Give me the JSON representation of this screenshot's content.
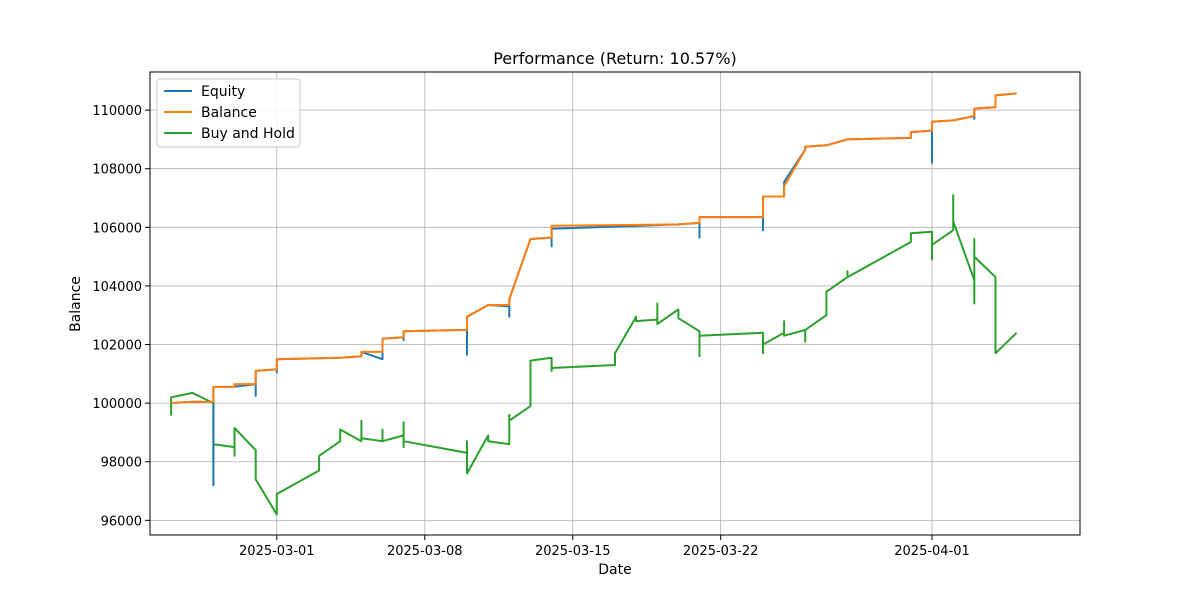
{
  "chart_data": {
    "type": "line",
    "title": "Performance (Return: 10.57%)",
    "xlabel": "Date",
    "ylabel": "Balance",
    "xlim": [
      "2025-02-23",
      "2025-04-08"
    ],
    "ylim": [
      95500,
      111300
    ],
    "x_ticks": [
      "2025-03-01",
      "2025-03-08",
      "2025-03-15",
      "2025-03-22",
      "2025-04-01"
    ],
    "y_ticks": [
      96000,
      98000,
      100000,
      102000,
      104000,
      106000,
      108000,
      110000
    ],
    "grid": true,
    "legend_position": "top-left",
    "series": [
      {
        "name": "Equity",
        "color": "#1f77b4",
        "points": [
          [
            "2025-02-24",
            100000
          ],
          [
            "2025-02-25",
            100050
          ],
          [
            "2025-02-26",
            100040
          ],
          [
            "2025-02-26",
            97200
          ],
          [
            "2025-02-26",
            100550
          ],
          [
            "2025-02-27",
            100560
          ],
          [
            "2025-02-28",
            100650
          ],
          [
            "2025-02-28",
            100250
          ],
          [
            "2025-02-28",
            101100
          ],
          [
            "2025-03-01",
            101150
          ],
          [
            "2025-03-01",
            101050
          ],
          [
            "2025-03-01",
            101500
          ],
          [
            "2025-03-04",
            101550
          ],
          [
            "2025-03-05",
            101600
          ],
          [
            "2025-03-05",
            101750
          ],
          [
            "2025-03-06",
            101500
          ],
          [
            "2025-03-06",
            102200
          ],
          [
            "2025-03-07",
            102250
          ],
          [
            "2025-03-07",
            102150
          ],
          [
            "2025-03-07",
            102450
          ],
          [
            "2025-03-10",
            102500
          ],
          [
            "2025-03-10",
            101650
          ],
          [
            "2025-03-10",
            102950
          ],
          [
            "2025-03-11",
            103350
          ],
          [
            "2025-03-12",
            103300
          ],
          [
            "2025-03-12",
            102950
          ],
          [
            "2025-03-12",
            103550
          ],
          [
            "2025-03-13",
            105600
          ],
          [
            "2025-03-14",
            105650
          ],
          [
            "2025-03-14",
            105350
          ],
          [
            "2025-03-14",
            105950
          ],
          [
            "2025-03-20",
            106100
          ],
          [
            "2025-03-21",
            106150
          ],
          [
            "2025-03-21",
            105650
          ],
          [
            "2025-03-21",
            106350
          ],
          [
            "2025-03-24",
            106350
          ],
          [
            "2025-03-24",
            105900
          ],
          [
            "2025-03-24",
            107050
          ],
          [
            "2025-03-25",
            107050
          ],
          [
            "2025-03-25",
            107550
          ],
          [
            "2025-03-26",
            108650
          ],
          [
            "2025-03-26",
            108750
          ],
          [
            "2025-03-27",
            108800
          ],
          [
            "2025-03-28",
            109000
          ],
          [
            "2025-03-31",
            109050
          ],
          [
            "2025-03-31",
            109250
          ],
          [
            "2025-04-01",
            109300
          ],
          [
            "2025-04-01",
            108200
          ],
          [
            "2025-04-01",
            109600
          ],
          [
            "2025-04-02",
            109650
          ],
          [
            "2025-04-03",
            109800
          ],
          [
            "2025-04-03",
            109700
          ],
          [
            "2025-04-03",
            110050
          ],
          [
            "2025-04-04",
            110100
          ],
          [
            "2025-04-04",
            110500
          ],
          [
            "2025-04-05",
            110570
          ]
        ]
      },
      {
        "name": "Balance",
        "color": "#ff7f0e",
        "points": [
          [
            "2025-02-24",
            100000
          ],
          [
            "2025-02-25",
            100050
          ],
          [
            "2025-02-26",
            100040
          ],
          [
            "2025-02-26",
            100550
          ],
          [
            "2025-02-27",
            100560
          ],
          [
            "2025-02-27",
            100650
          ],
          [
            "2025-02-28",
            100650
          ],
          [
            "2025-02-28",
            101100
          ],
          [
            "2025-03-01",
            101150
          ],
          [
            "2025-03-01",
            101500
          ],
          [
            "2025-03-04",
            101550
          ],
          [
            "2025-03-05",
            101600
          ],
          [
            "2025-03-05",
            101750
          ],
          [
            "2025-03-06",
            101750
          ],
          [
            "2025-03-06",
            102200
          ],
          [
            "2025-03-07",
            102250
          ],
          [
            "2025-03-07",
            102450
          ],
          [
            "2025-03-10",
            102500
          ],
          [
            "2025-03-10",
            102950
          ],
          [
            "2025-03-11",
            103350
          ],
          [
            "2025-03-12",
            103350
          ],
          [
            "2025-03-12",
            103550
          ],
          [
            "2025-03-13",
            105600
          ],
          [
            "2025-03-14",
            105650
          ],
          [
            "2025-03-14",
            105950
          ],
          [
            "2025-03-14",
            106050
          ],
          [
            "2025-03-20",
            106100
          ],
          [
            "2025-03-21",
            106150
          ],
          [
            "2025-03-21",
            106350
          ],
          [
            "2025-03-24",
            106350
          ],
          [
            "2025-03-24",
            107050
          ],
          [
            "2025-03-25",
            107050
          ],
          [
            "2025-03-25",
            107400
          ],
          [
            "2025-03-26",
            108650
          ],
          [
            "2025-03-26",
            108750
          ],
          [
            "2025-03-27",
            108800
          ],
          [
            "2025-03-28",
            109000
          ],
          [
            "2025-03-31",
            109050
          ],
          [
            "2025-03-31",
            109250
          ],
          [
            "2025-04-01",
            109300
          ],
          [
            "2025-04-01",
            109600
          ],
          [
            "2025-04-02",
            109650
          ],
          [
            "2025-04-03",
            109800
          ],
          [
            "2025-04-03",
            110050
          ],
          [
            "2025-04-04",
            110100
          ],
          [
            "2025-04-04",
            110500
          ],
          [
            "2025-04-05",
            110570
          ]
        ]
      },
      {
        "name": "Buy and Hold",
        "color": "#2ca02c",
        "points": [
          [
            "2025-02-24",
            100000
          ],
          [
            "2025-02-24",
            99600
          ],
          [
            "2025-02-24",
            100200
          ],
          [
            "2025-02-25",
            100350
          ],
          [
            "2025-02-26",
            100000
          ],
          [
            "2025-02-26",
            98000
          ],
          [
            "2025-02-26",
            99200
          ],
          [
            "2025-02-26",
            98600
          ],
          [
            "2025-02-27",
            98500
          ],
          [
            "2025-02-27",
            98200
          ],
          [
            "2025-02-27",
            99150
          ],
          [
            "2025-02-28",
            98400
          ],
          [
            "2025-02-28",
            97500
          ],
          [
            "2025-02-28",
            98000
          ],
          [
            "2025-02-28",
            97400
          ],
          [
            "2025-03-01",
            96200
          ],
          [
            "2025-03-01",
            96900
          ],
          [
            "2025-03-03",
            97700
          ],
          [
            "2025-03-03",
            98200
          ],
          [
            "2025-03-04",
            98700
          ],
          [
            "2025-03-04",
            99100
          ],
          [
            "2025-03-05",
            98700
          ],
          [
            "2025-03-05",
            99400
          ],
          [
            "2025-03-05",
            98800
          ],
          [
            "2025-03-06",
            98700
          ],
          [
            "2025-03-06",
            99100
          ],
          [
            "2025-03-06",
            98700
          ],
          [
            "2025-03-07",
            98900
          ],
          [
            "2025-03-07",
            99350
          ],
          [
            "2025-03-07",
            98500
          ],
          [
            "2025-03-07",
            98700
          ],
          [
            "2025-03-10",
            98300
          ],
          [
            "2025-03-10",
            98700
          ],
          [
            "2025-03-10",
            97600
          ],
          [
            "2025-03-11",
            98900
          ],
          [
            "2025-03-11",
            98700
          ],
          [
            "2025-03-12",
            98600
          ],
          [
            "2025-03-12",
            99600
          ],
          [
            "2025-03-12",
            99400
          ],
          [
            "2025-03-13",
            99900
          ],
          [
            "2025-03-13",
            101200
          ],
          [
            "2025-03-13",
            101450
          ],
          [
            "2025-03-14",
            101550
          ],
          [
            "2025-03-14",
            101100
          ],
          [
            "2025-03-14",
            101300
          ],
          [
            "2025-03-14",
            101200
          ],
          [
            "2025-03-17",
            101300
          ],
          [
            "2025-03-17",
            101700
          ],
          [
            "2025-03-18",
            102950
          ],
          [
            "2025-03-18",
            102800
          ],
          [
            "2025-03-19",
            102850
          ],
          [
            "2025-03-19",
            103400
          ],
          [
            "2025-03-19",
            102900
          ],
          [
            "2025-03-19",
            102700
          ],
          [
            "2025-03-20",
            103200
          ],
          [
            "2025-03-20",
            102900
          ],
          [
            "2025-03-21",
            102450
          ],
          [
            "2025-03-21",
            101600
          ],
          [
            "2025-03-21",
            102300
          ],
          [
            "2025-03-24",
            102400
          ],
          [
            "2025-03-24",
            101700
          ],
          [
            "2025-03-24",
            102000
          ],
          [
            "2025-03-25",
            102400
          ],
          [
            "2025-03-25",
            102800
          ],
          [
            "2025-03-25",
            102300
          ],
          [
            "2025-03-26",
            102500
          ],
          [
            "2025-03-26",
            102100
          ],
          [
            "2025-03-26",
            102500
          ],
          [
            "2025-03-27",
            103000
          ],
          [
            "2025-03-27",
            103800
          ],
          [
            "2025-03-28",
            104300
          ],
          [
            "2025-03-28",
            104500
          ],
          [
            "2025-03-28",
            104300
          ],
          [
            "2025-03-31",
            105500
          ],
          [
            "2025-03-31",
            105800
          ],
          [
            "2025-04-01",
            105850
          ],
          [
            "2025-04-01",
            104900
          ],
          [
            "2025-04-01",
            105600
          ],
          [
            "2025-04-01",
            105400
          ],
          [
            "2025-04-02",
            105900
          ],
          [
            "2025-04-02",
            106300
          ],
          [
            "2025-04-02",
            107100
          ],
          [
            "2025-04-02",
            106200
          ],
          [
            "2025-04-03",
            104200
          ],
          [
            "2025-04-03",
            103400
          ],
          [
            "2025-04-03",
            105600
          ],
          [
            "2025-04-03",
            104700
          ],
          [
            "2025-04-03",
            105000
          ],
          [
            "2025-04-04",
            104300
          ],
          [
            "2025-04-04",
            103700
          ],
          [
            "2025-04-04",
            102800
          ],
          [
            "2025-04-04",
            101700
          ],
          [
            "2025-04-05",
            102400
          ]
        ]
      }
    ]
  }
}
